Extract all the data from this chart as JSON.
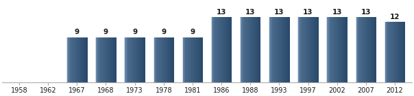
{
  "categories": [
    "1958",
    "1962",
    "1967",
    "1968",
    "1973",
    "1978",
    "1981",
    "1986",
    "1988",
    "1993",
    "1997",
    "2002",
    "2007",
    "2012"
  ],
  "values": [
    0,
    0,
    9,
    9,
    9,
    9,
    9,
    13,
    13,
    13,
    13,
    13,
    13,
    12
  ],
  "bar_color_main": "#4a6a8c",
  "bar_color_light": "#6a8aac",
  "bar_color_dark": "#2a4a6c",
  "bar_edge_color": "#ffffff",
  "label_color": "#1a1a1a",
  "label_fontsize": 7.5,
  "label_fontweight": "bold",
  "tick_fontsize": 7,
  "background_color": "#ffffff",
  "ylim": [
    0,
    16
  ],
  "bar_width": 0.72
}
